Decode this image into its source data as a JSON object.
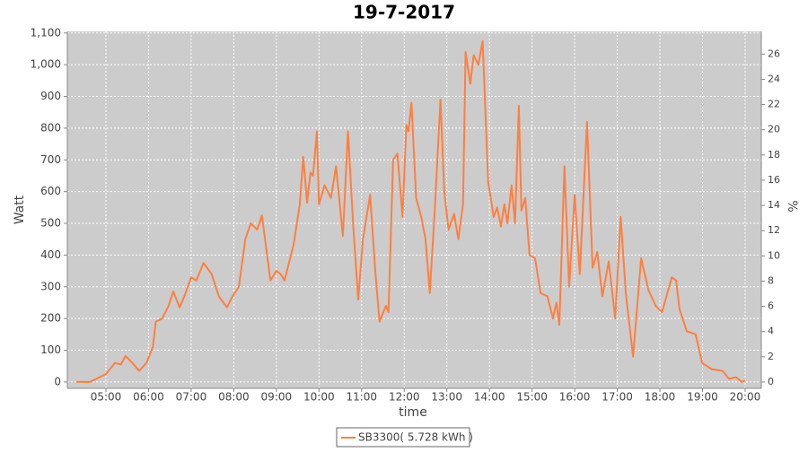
{
  "chart_data": {
    "type": "line",
    "title": "19-7-2017",
    "x_label": "time",
    "y_label": "Watt",
    "y2_label": "%",
    "legend": "bottom",
    "grid": true,
    "xlim": [
      4.094,
      20.38
    ],
    "xticks": [
      {
        "value": 5,
        "label": "05:00"
      },
      {
        "value": 6,
        "label": "06:00"
      },
      {
        "value": 7,
        "label": "07:00"
      },
      {
        "value": 8,
        "label": "08:00"
      },
      {
        "value": 9,
        "label": "09:00"
      },
      {
        "value": 10,
        "label": "10:00"
      },
      {
        "value": 11,
        "label": "11:00"
      },
      {
        "value": 12,
        "label": "12:00"
      },
      {
        "value": 13,
        "label": "13:00"
      },
      {
        "value": 14,
        "label": "14:00"
      },
      {
        "value": 15,
        "label": "15:00"
      },
      {
        "value": 16,
        "label": "16:00"
      },
      {
        "value": 17,
        "label": "17:00"
      },
      {
        "value": 18,
        "label": "18:00"
      },
      {
        "value": 19,
        "label": "19:00"
      },
      {
        "value": 20,
        "label": "20:00"
      }
    ],
    "ylim": [
      -20,
      1105
    ],
    "yticks": [
      0,
      100,
      200,
      300,
      400,
      500,
      600,
      700,
      800,
      900,
      {
        "value": 1000,
        "label": "1,000"
      },
      {
        "value": 1100,
        "label": "1,100"
      }
    ],
    "y2lim": [
      -0.5,
      27.8
    ],
    "y2ticks": [
      0,
      2,
      4,
      6,
      8,
      10,
      12,
      14,
      16,
      18,
      20,
      22,
      24,
      26
    ],
    "x": [
      4.3,
      4.62,
      4.85,
      5.0,
      5.21,
      5.35,
      5.46,
      5.62,
      5.78,
      5.95,
      6.1,
      6.17,
      6.32,
      6.47,
      6.58,
      6.73,
      6.84,
      7.0,
      7.12,
      7.29,
      7.48,
      7.65,
      7.84,
      7.97,
      8.12,
      8.27,
      8.4,
      8.55,
      8.66,
      8.86,
      9.0,
      9.1,
      9.19,
      9.4,
      9.55,
      9.63,
      9.72,
      9.8,
      9.86,
      9.95,
      10.0,
      10.13,
      10.28,
      10.4,
      10.56,
      10.68,
      10.8,
      10.92,
      11.03,
      11.2,
      11.32,
      11.42,
      11.57,
      11.63,
      11.74,
      11.84,
      11.96,
      12.05,
      12.1,
      12.17,
      12.28,
      12.4,
      12.5,
      12.6,
      12.72,
      12.85,
      12.94,
      13.04,
      13.17,
      13.27,
      13.38,
      13.44,
      13.55,
      13.63,
      13.74,
      13.84,
      13.97,
      14.1,
      14.18,
      14.27,
      14.35,
      14.42,
      14.52,
      14.6,
      14.69,
      14.75,
      14.84,
      14.94,
      15.07,
      15.2,
      15.36,
      15.49,
      15.57,
      15.64,
      15.76,
      15.87,
      16.0,
      16.12,
      16.29,
      16.42,
      16.53,
      16.65,
      16.8,
      16.95,
      17.08,
      17.2,
      17.37,
      17.56,
      17.73,
      17.9,
      18.05,
      18.28,
      18.38,
      18.46,
      18.63,
      18.84,
      18.99,
      19.22,
      19.47,
      19.62,
      19.79,
      19.92,
      20.0
    ],
    "series": [
      {
        "name": "SB3300( 5.728 kWh )",
        "color": "#ff7f3f",
        "values": [
          0,
          0,
          15,
          25,
          60,
          55,
          82,
          60,
          35,
          60,
          110,
          190,
          200,
          240,
          285,
          235,
          270,
          330,
          320,
          375,
          340,
          270,
          235,
          270,
          300,
          450,
          500,
          480,
          525,
          320,
          350,
          340,
          320,
          430,
          560,
          710,
          565,
          660,
          650,
          790,
          560,
          620,
          580,
          680,
          460,
          790,
          500,
          260,
          450,
          590,
          350,
          190,
          240,
          220,
          700,
          720,
          520,
          810,
          790,
          880,
          580,
          520,
          450,
          280,
          550,
          890,
          600,
          480,
          530,
          450,
          560,
          1040,
          940,
          1030,
          1000,
          1075,
          630,
          520,
          550,
          490,
          560,
          500,
          620,
          500,
          870,
          540,
          580,
          400,
          390,
          280,
          270,
          200,
          250,
          180,
          680,
          300,
          590,
          340,
          820,
          360,
          410,
          270,
          380,
          200,
          520,
          280,
          80,
          390,
          290,
          240,
          220,
          330,
          320,
          230,
          160,
          150,
          60,
          40,
          35,
          10,
          15,
          0,
          5
        ]
      }
    ]
  }
}
